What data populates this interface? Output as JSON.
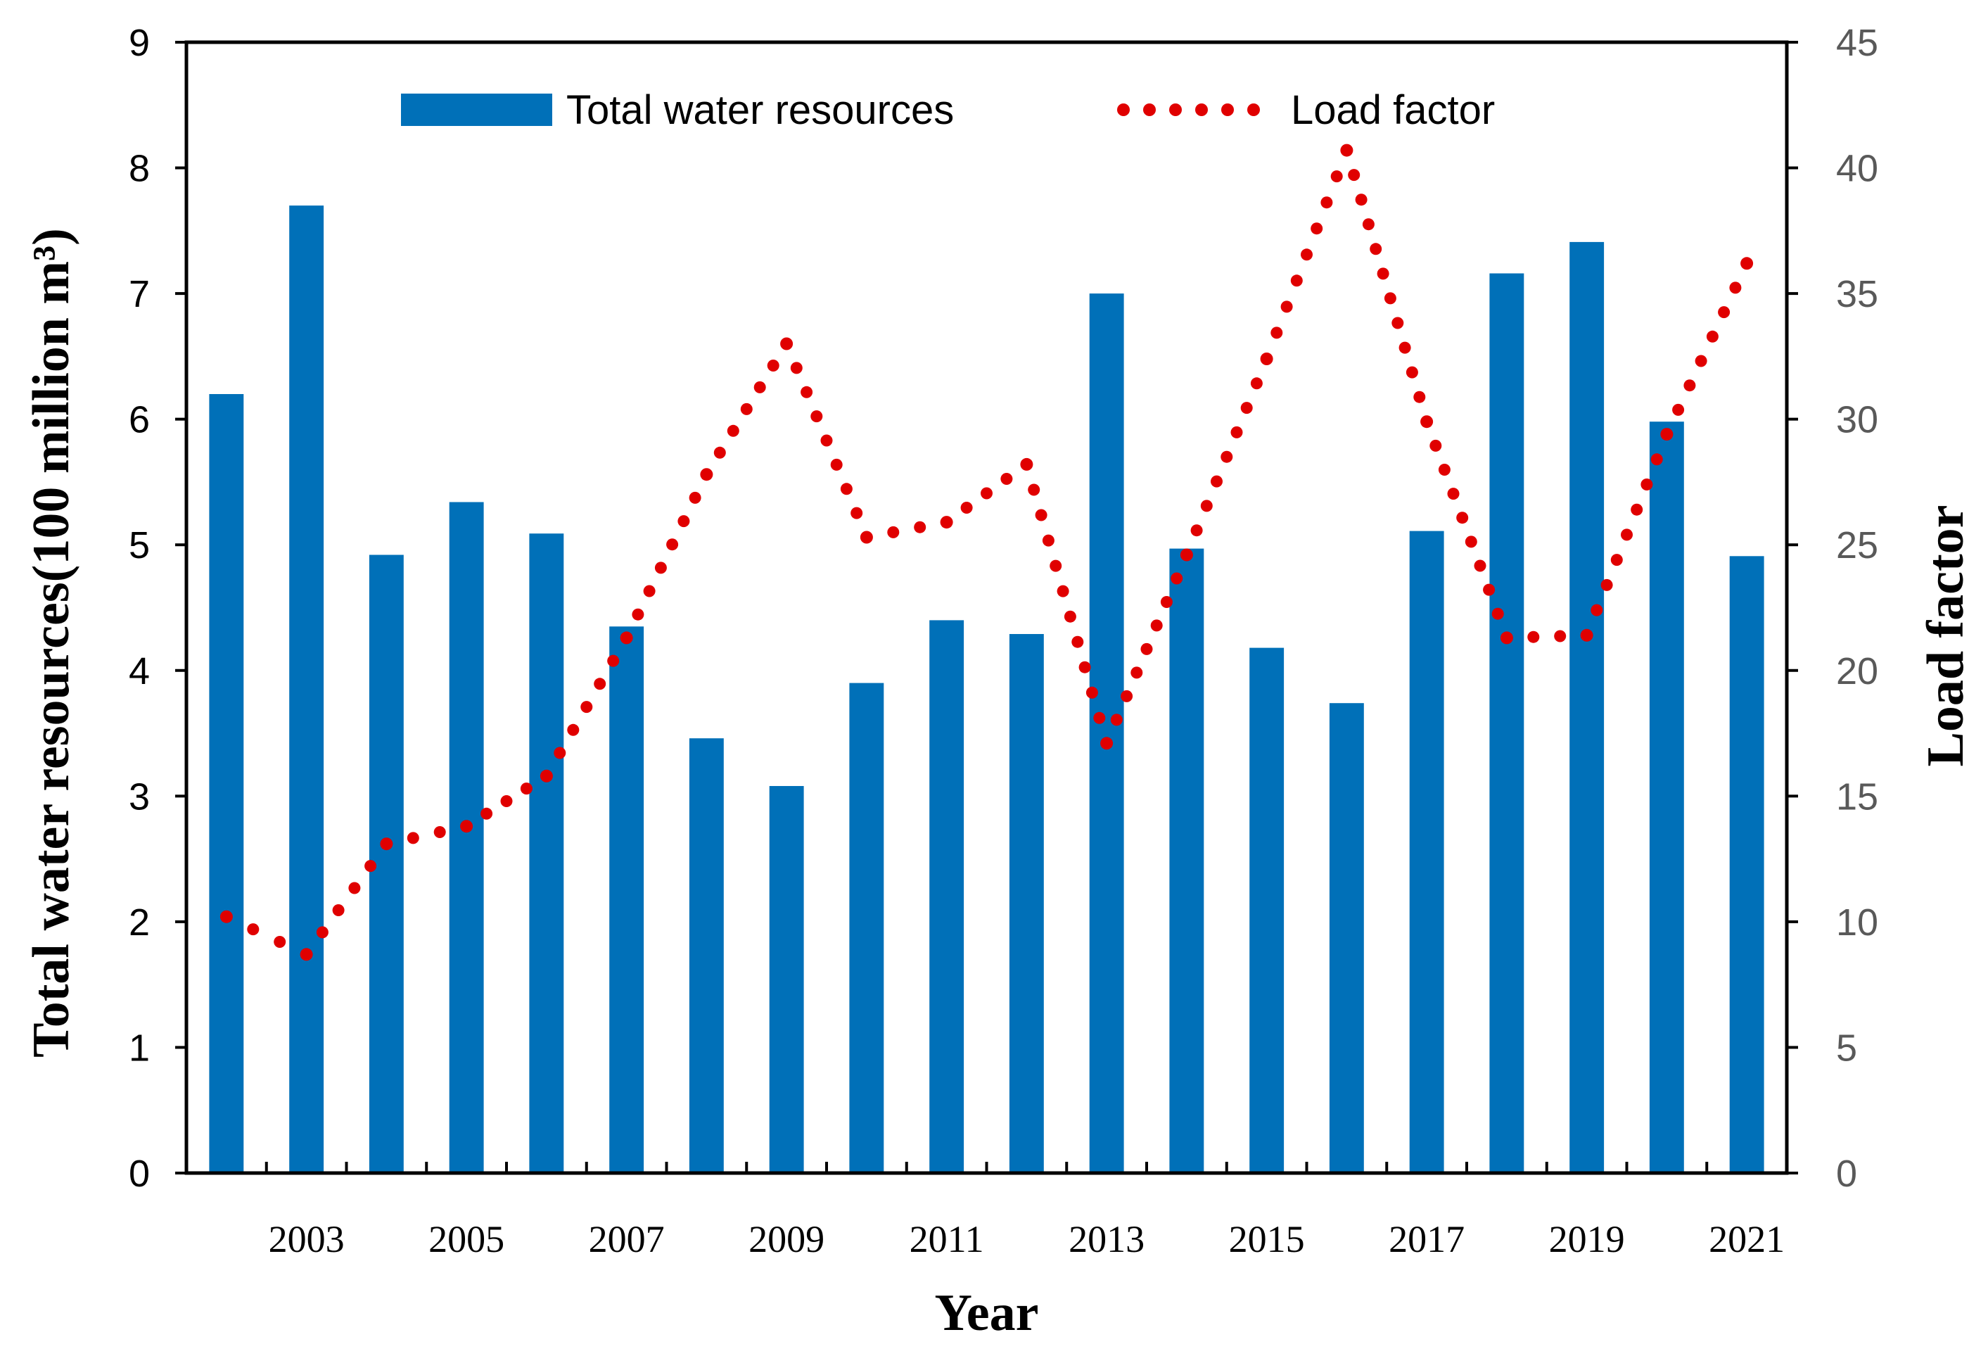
{
  "chart_data": {
    "type": "bar+line",
    "xlabel": "Year",
    "ylabel_left": "Total water resources(100 million m³)",
    "ylabel_right": "Load factor",
    "ylim_left": [
      0,
      9
    ],
    "ylim_right": [
      0,
      45
    ],
    "yticks_left": [
      "0",
      "1",
      "2",
      "3",
      "4",
      "5",
      "6",
      "7",
      "8",
      "9"
    ],
    "yticks_right": [
      "0",
      "5",
      "10",
      "15",
      "20",
      "25",
      "30",
      "35",
      "40",
      "45"
    ],
    "x_tick_labels": [
      "2003",
      "2005",
      "2007",
      "2009",
      "2011",
      "2013",
      "2015",
      "2017",
      "2019",
      "2021"
    ],
    "categories": [
      2002,
      2003,
      2004,
      2005,
      2006,
      2007,
      2008,
      2009,
      2010,
      2011,
      2012,
      2013,
      2014,
      2015,
      2016,
      2017,
      2018,
      2019,
      2020,
      2021
    ],
    "series": [
      {
        "name": "Total water resources",
        "type": "bar",
        "axis": "left",
        "color": "#0070B8",
        "values": [
          6.2,
          7.7,
          4.92,
          5.34,
          5.09,
          4.35,
          3.46,
          3.08,
          3.9,
          4.4,
          4.29,
          7.0,
          4.97,
          4.18,
          3.74,
          5.11,
          7.16,
          7.41,
          5.98,
          4.91
        ]
      },
      {
        "name": "Load factor",
        "type": "line-dotted",
        "axis": "right",
        "color": "#E00000",
        "values": [
          10.2,
          8.7,
          13.1,
          13.8,
          15.8,
          21.3,
          27.8,
          33.0,
          25.3,
          25.9,
          28.2,
          17.1,
          24.6,
          32.4,
          40.7,
          29.9,
          21.3,
          21.4,
          29.4,
          36.2
        ]
      }
    ],
    "legend_position": "top-center"
  }
}
